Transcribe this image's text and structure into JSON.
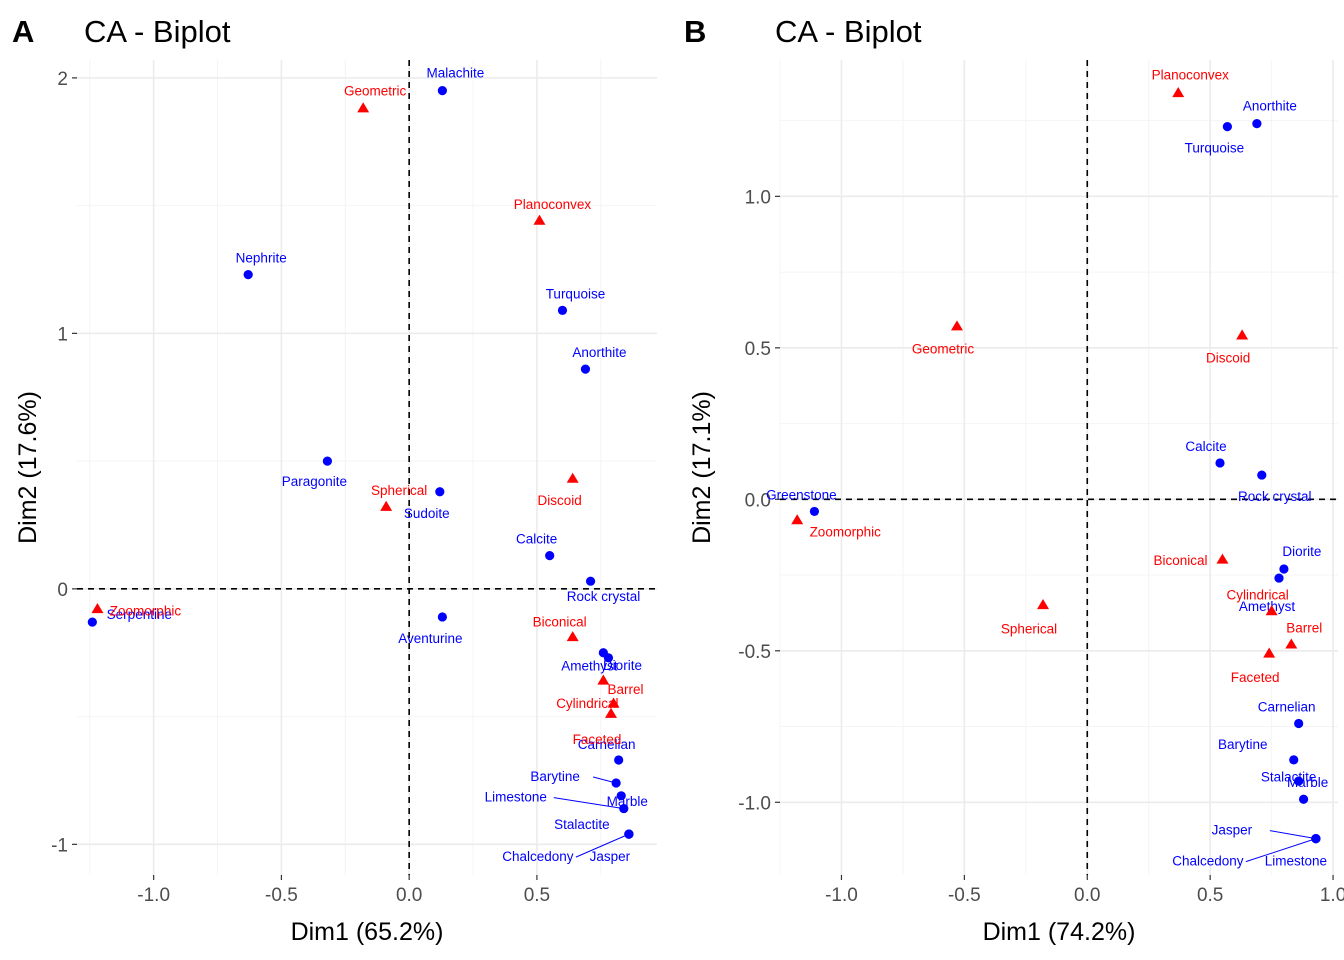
{
  "colors": {
    "row": "#0000ff",
    "col": "#ff0000",
    "grid_major": "#ebebeb",
    "grid_minor": "#f4f4f4",
    "text": "#000000",
    "tick": "#4d4d4d"
  },
  "chart_data": [
    {
      "panel": "A",
      "type": "scatter",
      "title": "CA - Biplot",
      "xlabel": "Dim1 (65.2%)",
      "ylabel": "Dim2 (17.6%)",
      "xlim": [
        -1.3,
        0.97
      ],
      "ylim": [
        -1.12,
        2.07
      ],
      "x_ticks": [
        -1.0,
        -0.5,
        0.0,
        0.5
      ],
      "x_tick_labels": [
        "-1.0",
        "-0.5",
        "0.0",
        "0.5"
      ],
      "y_ticks": [
        -1,
        0,
        1,
        2
      ],
      "y_tick_labels": [
        "-1",
        "0",
        "1",
        "2"
      ],
      "grid": true,
      "reference_lines": {
        "x": 0,
        "y": 0,
        "style": "dashed"
      },
      "series": [
        {
          "name": "",
          "marker": "circle",
          "color": "#0000ff",
          "points": [
            {
              "label": "Malachite",
              "x": 0.13,
              "y": 1.95
            },
            {
              "label": "Nephrite",
              "x": -0.63,
              "y": 1.23
            },
            {
              "label": "Turquoise",
              "x": 0.6,
              "y": 1.09
            },
            {
              "label": "Anorthite",
              "x": 0.69,
              "y": 0.86
            },
            {
              "label": "Paragonite",
              "x": -0.32,
              "y": 0.5
            },
            {
              "label": "Sudoite",
              "x": 0.12,
              "y": 0.38
            },
            {
              "label": "Calcite",
              "x": 0.55,
              "y": 0.13
            },
            {
              "label": "Rock crystal",
              "x": 0.71,
              "y": 0.03
            },
            {
              "label": "Serpentine",
              "x": -1.24,
              "y": -0.13
            },
            {
              "label": "Aventurine",
              "x": 0.13,
              "y": -0.11
            },
            {
              "label": "Amethyst",
              "x": 0.76,
              "y": -0.25
            },
            {
              "label": "Diorite",
              "x": 0.78,
              "y": -0.27
            },
            {
              "label": "Carnelian",
              "x": 0.82,
              "y": -0.67
            },
            {
              "label": "Barytine",
              "x": 0.81,
              "y": -0.76
            },
            {
              "label": "Marble",
              "x": 0.83,
              "y": -0.81
            },
            {
              "label": "Limestone",
              "x": 0.84,
              "y": -0.86
            },
            {
              "label": "Stalactite",
              "x": 0.86,
              "y": -0.96
            },
            {
              "label": "Chalcedony",
              "x": 0.86,
              "y": -0.96
            },
            {
              "label": "Jasper",
              "x": 0.86,
              "y": -0.96
            }
          ]
        },
        {
          "name": "",
          "marker": "triangle",
          "color": "#ff0000",
          "points": [
            {
              "label": "Geometric",
              "x": -0.18,
              "y": 1.88
            },
            {
              "label": "Planoconvex",
              "x": 0.51,
              "y": 1.44
            },
            {
              "label": "Spherical",
              "x": -0.09,
              "y": 0.32
            },
            {
              "label": "Discoid",
              "x": 0.64,
              "y": 0.43
            },
            {
              "label": "Zoomorphic",
              "x": -1.22,
              "y": -0.08
            },
            {
              "label": "Biconical",
              "x": 0.64,
              "y": -0.19
            },
            {
              "label": "Cylindrical",
              "x": 0.76,
              "y": -0.36
            },
            {
              "label": "Barrel",
              "x": 0.8,
              "y": -0.45
            },
            {
              "label": "Faceted",
              "x": 0.79,
              "y": -0.49
            }
          ]
        }
      ]
    },
    {
      "panel": "B",
      "type": "scatter",
      "title": "CA - Biplot",
      "xlabel": "Dim1 (74.2%)",
      "ylabel": "Dim2 (17.1%)",
      "xlim": [
        -1.25,
        1.02
      ],
      "ylim": [
        -1.24,
        1.45
      ],
      "x_ticks": [
        -1.0,
        -0.5,
        0.0,
        0.5,
        1.0
      ],
      "x_tick_labels": [
        "-1.0",
        "-0.5",
        "0.0",
        "0.5",
        "1.0"
      ],
      "y_ticks": [
        -1.0,
        -0.5,
        0.0,
        0.5,
        1.0
      ],
      "y_tick_labels": [
        "-1.0",
        "-0.5",
        "0.0",
        "0.5",
        "1.0"
      ],
      "grid": true,
      "reference_lines": {
        "x": 0,
        "y": 0,
        "style": "dashed"
      },
      "series": [
        {
          "name": "",
          "marker": "circle",
          "color": "#0000ff",
          "points": [
            {
              "label": "Anorthite",
              "x": 0.69,
              "y": 1.24
            },
            {
              "label": "Turquoise",
              "x": 0.57,
              "y": 1.23
            },
            {
              "label": "Calcite",
              "x": 0.54,
              "y": 0.12
            },
            {
              "label": "Rock crystal",
              "x": 0.71,
              "y": 0.08
            },
            {
              "label": "Greenstone",
              "x": -1.11,
              "y": -0.04
            },
            {
              "label": "Diorite",
              "x": 0.8,
              "y": -0.23
            },
            {
              "label": "Amethyst",
              "x": 0.78,
              "y": -0.26
            },
            {
              "label": "Carnelian",
              "x": 0.86,
              "y": -0.74
            },
            {
              "label": "Barytine",
              "x": 0.84,
              "y": -0.86
            },
            {
              "label": "Marble",
              "x": 0.86,
              "y": -0.93
            },
            {
              "label": "Stalactite",
              "x": 0.88,
              "y": -0.99
            },
            {
              "label": "Jasper",
              "x": 0.93,
              "y": -1.12
            },
            {
              "label": "Chalcedony",
              "x": 0.93,
              "y": -1.12
            },
            {
              "label": "Limestone",
              "x": 0.93,
              "y": -1.12
            }
          ]
        },
        {
          "name": "",
          "marker": "triangle",
          "color": "#ff0000",
          "points": [
            {
              "label": "Planoconvex",
              "x": 0.37,
              "y": 1.34
            },
            {
              "label": "Geometric",
              "x": -0.53,
              "y": 0.57
            },
            {
              "label": "Discoid",
              "x": 0.63,
              "y": 0.54
            },
            {
              "label": "Zoomorphic",
              "x": -1.18,
              "y": -0.07
            },
            {
              "label": "Biconical",
              "x": 0.55,
              "y": -0.2
            },
            {
              "label": "Spherical",
              "x": -0.18,
              "y": -0.35
            },
            {
              "label": "Cylindrical",
              "x": 0.75,
              "y": -0.37
            },
            {
              "label": "Barrel",
              "x": 0.83,
              "y": -0.48
            },
            {
              "label": "Faceted",
              "x": 0.74,
              "y": -0.51
            }
          ]
        }
      ]
    }
  ]
}
